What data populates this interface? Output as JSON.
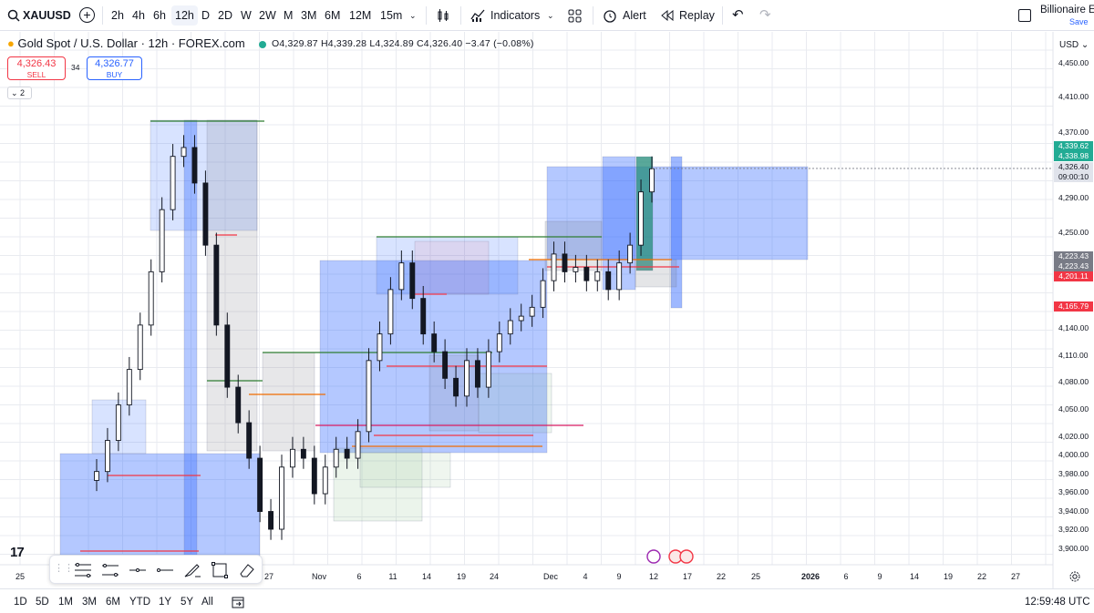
{
  "toolbar": {
    "symbol": "XAUUSD",
    "timeframes": [
      "2h",
      "4h",
      "6h",
      "12h",
      "D",
      "2D",
      "W",
      "2W",
      "M",
      "3M",
      "6M",
      "12M",
      "15m"
    ],
    "selected_timeframe": "12h",
    "indicators_label": "Indicators",
    "alert_label": "Alert",
    "replay_label": "Replay",
    "account_name": "Billionaire E",
    "save_label": "Save"
  },
  "legend": {
    "title": "Gold Spot / U.S. Dollar · 12h · FOREX.com",
    "open": "O4,329.87",
    "high": "H4,339.28",
    "low": "L4,324.89",
    "close": "C4,326.40",
    "change": "−3.47 (−0.08%)"
  },
  "trade": {
    "sell_price": "4,326.43",
    "sell_label": "SELL",
    "spread": "34",
    "buy_price": "4,326.77",
    "buy_label": "BUY"
  },
  "collapse_count": "2",
  "price_axis": {
    "currency": "USD",
    "labels": [
      "4,450.00",
      "4,410.00",
      "4,370.00",
      "4,290.00",
      "4,250.00",
      "4,140.00",
      "4,110.00",
      "4,080.00",
      "4,050.00",
      "4,020.00",
      "4,000.00",
      "3,980.00",
      "3,960.00",
      "3,940.00",
      "3,920.00",
      "3,900.00"
    ],
    "badges": [
      {
        "text": "4,339.62",
        "color": "#22ab94"
      },
      {
        "text": "4,338.98",
        "color": "#22ab94"
      },
      {
        "text": "4,326.40",
        "color": "#d1d4dc"
      },
      {
        "text": "09:00:10",
        "color": "#d1d4dc"
      },
      {
        "text": "4,223.43",
        "color": "#787b86"
      },
      {
        "text": "4,223.43",
        "color": "#787b86"
      },
      {
        "text": "4,201.11",
        "color": "#f23645"
      },
      {
        "text": "4,165.79",
        "color": "#f23645"
      }
    ]
  },
  "time_axis": [
    "25",
    "27",
    "Nov",
    "6",
    "11",
    "14",
    "19",
    "24",
    "Dec",
    "4",
    "9",
    "12",
    "17",
    "22",
    "25",
    "2026",
    "6",
    "9",
    "14",
    "19",
    "22",
    "27"
  ],
  "bottom": {
    "ranges": [
      "1D",
      "5D",
      "1M",
      "3M",
      "6M",
      "YTD",
      "1Y",
      "5Y",
      "All"
    ],
    "clock": "12:59:48 UTC"
  },
  "chart_data": {
    "type": "candlestick",
    "symbol": "XAUUSD",
    "interval": "12h",
    "ylim": [
      3880,
      4470
    ],
    "last_price": 4326.4,
    "approx_closes": [
      3985,
      4020,
      4060,
      4100,
      4150,
      4210,
      4280,
      4340,
      4350,
      4310,
      4240,
      4150,
      4080,
      4040,
      4000,
      3940,
      3920,
      3990,
      4010,
      4000,
      3960,
      3990,
      4010,
      4000,
      4030,
      4110,
      4140,
      4190,
      4220,
      4180,
      4140,
      4120,
      4090,
      4070,
      4110,
      4080,
      4120,
      4140,
      4155,
      4160,
      4170,
      4200,
      4230,
      4210,
      4215,
      4200,
      4210,
      4190,
      4220,
      4240,
      4300,
      4326
    ]
  }
}
